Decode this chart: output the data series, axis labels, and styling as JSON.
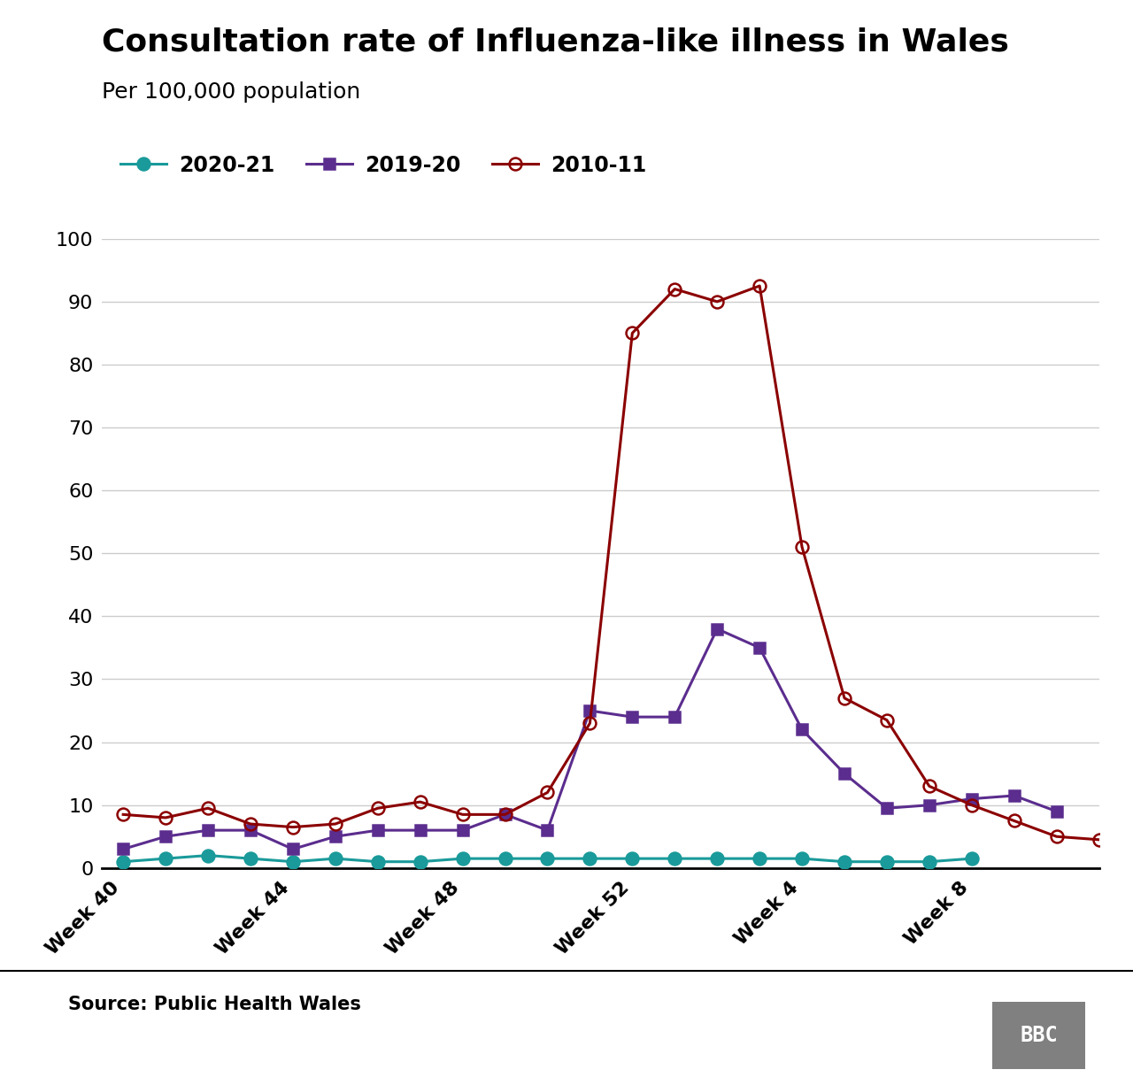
{
  "title": "Consultation rate of Influenza-like illness in Wales",
  "subtitle": "Per 100,000 population",
  "source": "Source: Public Health Wales",
  "x_labels": [
    "Week 40",
    "Week 44",
    "Week 48",
    "Week 52",
    "Week 4",
    "Week 8"
  ],
  "x_tick_positions": [
    0,
    4,
    8,
    12,
    16,
    20
  ],
  "series": [
    {
      "label": "2020-21",
      "color": "#1A9A9A",
      "marker": "o",
      "marker_face": "#1A9A9A",
      "linewidth": 2.2,
      "markersize": 10,
      "data": [
        1.0,
        1.5,
        2.0,
        1.5,
        1.0,
        1.5,
        1.0,
        1.0,
        1.5,
        1.5,
        1.5,
        1.5,
        1.5,
        1.5,
        1.5,
        1.5,
        1.5,
        1.0,
        1.0,
        1.0,
        1.5
      ]
    },
    {
      "label": "2019-20",
      "color": "#5B2D8E",
      "marker": "s",
      "marker_face": "#5B2D8E",
      "linewidth": 2.2,
      "markersize": 9,
      "data": [
        3.0,
        5.0,
        6.0,
        6.0,
        3.0,
        5.0,
        6.0,
        6.0,
        6.0,
        8.5,
        6.0,
        25.0,
        24.0,
        24.0,
        38.0,
        35.0,
        22.0,
        15.0,
        9.5,
        10.0,
        11.0,
        11.5,
        9.0
      ]
    },
    {
      "label": "2010-11",
      "color": "#8B0000",
      "marker": "o",
      "marker_face": "none",
      "linewidth": 2.2,
      "markersize": 10,
      "data": [
        8.5,
        8.0,
        9.5,
        7.0,
        6.5,
        7.0,
        9.5,
        10.5,
        8.5,
        8.5,
        12.0,
        23.0,
        85.0,
        92.0,
        90.0,
        92.5,
        51.0,
        27.0,
        23.5,
        13.0,
        10.0,
        7.5,
        5.0,
        4.5
      ]
    }
  ],
  "ylim": [
    0,
    100
  ],
  "yticks": [
    0,
    10,
    20,
    30,
    40,
    50,
    60,
    70,
    80,
    90,
    100
  ],
  "background_color": "#ffffff",
  "grid_color": "#cccccc",
  "title_fontsize": 26,
  "subtitle_fontsize": 18,
  "tick_fontsize": 16,
  "legend_fontsize": 17,
  "source_fontsize": 15
}
